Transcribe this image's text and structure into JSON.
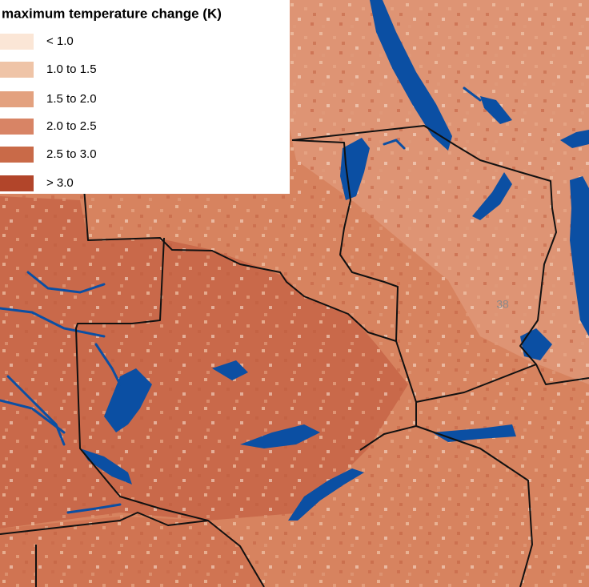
{
  "legend": {
    "title": "maximum temperature change (K)",
    "items": [
      {
        "label": "< 1.0",
        "color": "#fbe6d6"
      },
      {
        "label": "1.0 to 1.5",
        "color": "#efc4a7"
      },
      {
        "label": "1.5 to 2.0",
        "color": "#e3a17f"
      },
      {
        "label": "2.0 to 2.5",
        "color": "#d88465"
      },
      {
        "label": "2.5 to 3.0",
        "color": "#c96a48"
      },
      {
        "label": "> 3.0",
        "color": "#b2452a"
      }
    ]
  },
  "map_labels": [
    "38"
  ]
}
